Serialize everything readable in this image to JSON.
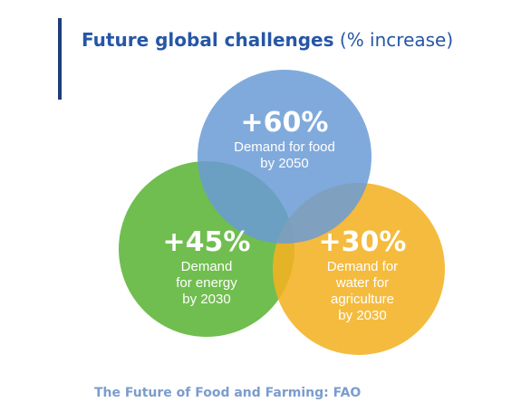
{
  "title": {
    "bold": "Future global challenges",
    "light": "(% increase)"
  },
  "circles": {
    "food": {
      "value": "+60%",
      "lines": [
        "Demand for food",
        "by 2050"
      ],
      "color": "#6a9bd6"
    },
    "energy": {
      "value": "+45%",
      "lines": [
        "Demand",
        "for energy",
        "by 2030"
      ],
      "color": "#5cb537"
    },
    "water": {
      "value": "+30%",
      "lines": [
        "Demand for",
        "water for",
        "agriculture",
        "by 2030"
      ],
      "color": "#f4b223"
    }
  },
  "source": "The Future of Food and Farming: FAO",
  "colors": {
    "title": "#2656a6",
    "accent_bar": "#1f3d7a",
    "source": "#7b9ccd"
  }
}
